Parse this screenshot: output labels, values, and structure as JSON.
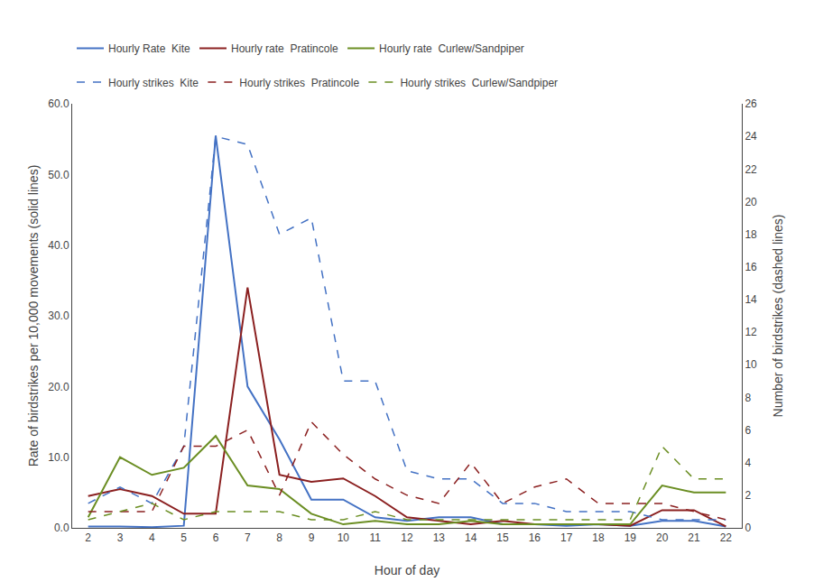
{
  "chart_data": {
    "type": "line",
    "x": [
      2,
      3,
      4,
      5,
      6,
      7,
      8,
      9,
      10,
      11,
      12,
      13,
      14,
      15,
      16,
      17,
      18,
      19,
      20,
      21,
      22
    ],
    "xlabel": "Hour of day",
    "ylabel": "Rate of birdstrikes per 10,000 movements (solid lines)",
    "y2label": "Number of birdstrikes (dashed lines)",
    "xlim": [
      1.5,
      22.5
    ],
    "xticks": [
      2,
      3,
      4,
      5,
      6,
      7,
      8,
      9,
      10,
      11,
      12,
      13,
      14,
      15,
      16,
      17,
      18,
      19,
      20,
      21,
      22
    ],
    "ylim": [
      0,
      60
    ],
    "yticks": [
      {
        "value": 0,
        "label": "0.0"
      },
      {
        "value": 10,
        "label": "10.0"
      },
      {
        "value": 20,
        "label": "20.0"
      },
      {
        "value": 30,
        "label": "30.0"
      },
      {
        "value": 40,
        "label": "40.0"
      },
      {
        "value": 50,
        "label": "50.0"
      },
      {
        "value": 60,
        "label": "60.0"
      }
    ],
    "y2lim": [
      0,
      26
    ],
    "y2ticks": [
      0,
      2,
      4,
      6,
      8,
      10,
      12,
      14,
      16,
      18,
      20,
      22,
      24,
      26
    ],
    "grid": false,
    "legend": "top",
    "series": [
      {
        "name": "Hourly Rate  Kite",
        "color": "#4472C4",
        "line_style": "solid",
        "values": [
          0.2,
          0.2,
          0.1,
          0.3,
          55.5,
          20.0,
          12.5,
          4.0,
          4.0,
          1.5,
          1.0,
          1.5,
          1.5,
          0.5,
          0.5,
          0.3,
          0.5,
          0.3,
          1.0,
          1.0,
          0.2
        ]
      },
      {
        "name": "Hourly rate  Pratincole",
        "color": "#8B2020",
        "line_style": "solid",
        "values": [
          4.5,
          5.5,
          4.5,
          2.0,
          2.0,
          34.0,
          7.5,
          6.5,
          7.0,
          4.5,
          1.5,
          1.0,
          0.5,
          1.0,
          0.5,
          0.5,
          0.5,
          0.3,
          2.5,
          2.5,
          0.2
        ]
      },
      {
        "name": "Hourly rate  Curlew/Sandpiper",
        "color": "#6B8E23",
        "line_style": "solid",
        "values": [
          1.5,
          10.0,
          7.5,
          8.5,
          13.0,
          6.0,
          5.5,
          2.0,
          0.5,
          1.0,
          0.5,
          0.5,
          1.0,
          0.5,
          0.5,
          0.5,
          0.5,
          0.5,
          6.0,
          5.0,
          5.0
        ]
      },
      {
        "name": "Hourly strikes  Kite",
        "color": "#4472C4",
        "line_style": "dashed",
        "axis": "y2",
        "values": [
          1.5,
          2.5,
          1.5,
          5.0,
          24.0,
          23.5,
          18.0,
          19.0,
          9.0,
          9.0,
          3.5,
          3.0,
          3.0,
          1.5,
          1.5,
          1.0,
          1.0,
          1.0,
          0.5,
          0.5,
          0.5
        ]
      },
      {
        "name": "Hourly strikes  Pratincole",
        "color": "#8B2020",
        "line_style": "dashed",
        "axis": "y2",
        "values": [
          1.0,
          1.0,
          1.0,
          5.0,
          5.0,
          6.0,
          2.0,
          6.5,
          4.5,
          3.0,
          2.0,
          1.5,
          4.0,
          1.5,
          2.5,
          3.0,
          1.5,
          1.5,
          1.5,
          1.0,
          0.5
        ]
      },
      {
        "name": "Hourly strikes  Curlew/Sandpiper",
        "color": "#6B8E23",
        "line_style": "dashed",
        "axis": "y2",
        "values": [
          0.5,
          1.0,
          1.5,
          0.5,
          1.0,
          1.0,
          1.0,
          0.5,
          0.5,
          1.0,
          0.5,
          0.5,
          0.5,
          0.5,
          0.5,
          0.5,
          0.5,
          0.5,
          5.0,
          3.0,
          3.0
        ]
      }
    ]
  }
}
